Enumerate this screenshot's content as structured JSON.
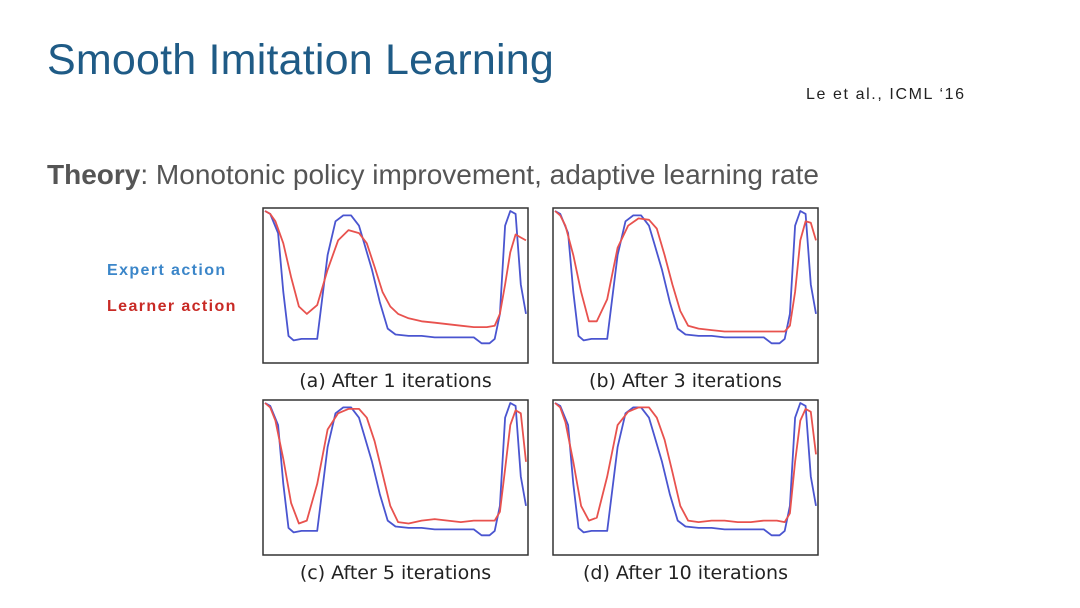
{
  "slide": {
    "title": "Smooth Imitation Learning",
    "citation": "Le et al., ICML ‘16",
    "theory_label": "Theory",
    "theory_text": ": Monotonic policy improvement, adaptive learning rate"
  },
  "legend": {
    "expert": "Expert action",
    "learner": "Learner action"
  },
  "colors": {
    "title": "#1f5b86",
    "expert": "#4a55d0",
    "learner": "#e8524e",
    "expert_legend": "#3b86c9",
    "learner_legend": "#c82a25"
  },
  "chart_data": [
    {
      "type": "line",
      "caption": "(a) After 1 iterations",
      "series": [
        {
          "name": "Expert action",
          "x": [
            0,
            0.02,
            0.05,
            0.07,
            0.09,
            0.11,
            0.14,
            0.2,
            0.24,
            0.27,
            0.3,
            0.33,
            0.36,
            0.38,
            0.41,
            0.44,
            0.47,
            0.5,
            0.55,
            0.6,
            0.65,
            0.7,
            0.75,
            0.8,
            0.83,
            0.86,
            0.88,
            0.9,
            0.92,
            0.94,
            0.96,
            0.98,
            1
          ],
          "y": [
            1,
            0.98,
            0.85,
            0.45,
            0.15,
            0.12,
            0.13,
            0.13,
            0.7,
            0.93,
            0.97,
            0.97,
            0.9,
            0.78,
            0.6,
            0.38,
            0.2,
            0.16,
            0.15,
            0.15,
            0.14,
            0.14,
            0.14,
            0.14,
            0.1,
            0.1,
            0.13,
            0.3,
            0.9,
            1,
            0.98,
            0.5,
            0.3
          ]
        },
        {
          "name": "Learner action",
          "x": [
            0,
            0.02,
            0.04,
            0.07,
            0.1,
            0.13,
            0.16,
            0.2,
            0.24,
            0.28,
            0.32,
            0.36,
            0.39,
            0.42,
            0.45,
            0.48,
            0.51,
            0.55,
            0.6,
            0.65,
            0.7,
            0.75,
            0.8,
            0.85,
            0.88,
            0.9,
            0.92,
            0.94,
            0.96,
            0.98,
            1
          ],
          "y": [
            1,
            0.98,
            0.93,
            0.78,
            0.55,
            0.35,
            0.3,
            0.36,
            0.6,
            0.8,
            0.87,
            0.85,
            0.78,
            0.62,
            0.45,
            0.35,
            0.3,
            0.27,
            0.25,
            0.24,
            0.23,
            0.22,
            0.21,
            0.21,
            0.22,
            0.3,
            0.5,
            0.72,
            0.84,
            0.82,
            0.8
          ]
        }
      ]
    },
    {
      "type": "line",
      "caption": "(b) After 3 iterations",
      "series": [
        {
          "name": "Expert action",
          "x": [
            0,
            0.02,
            0.05,
            0.07,
            0.09,
            0.11,
            0.14,
            0.2,
            0.24,
            0.27,
            0.3,
            0.33,
            0.36,
            0.38,
            0.41,
            0.44,
            0.47,
            0.5,
            0.55,
            0.6,
            0.65,
            0.7,
            0.75,
            0.8,
            0.83,
            0.86,
            0.88,
            0.9,
            0.92,
            0.94,
            0.96,
            0.98,
            1
          ],
          "y": [
            1,
            0.98,
            0.85,
            0.45,
            0.15,
            0.12,
            0.13,
            0.13,
            0.7,
            0.93,
            0.97,
            0.97,
            0.9,
            0.78,
            0.6,
            0.38,
            0.2,
            0.16,
            0.15,
            0.15,
            0.14,
            0.14,
            0.14,
            0.14,
            0.1,
            0.1,
            0.13,
            0.3,
            0.9,
            1,
            0.98,
            0.5,
            0.3
          ]
        },
        {
          "name": "Learner action",
          "x": [
            0,
            0.02,
            0.04,
            0.07,
            0.1,
            0.13,
            0.16,
            0.2,
            0.24,
            0.28,
            0.32,
            0.36,
            0.39,
            0.42,
            0.45,
            0.48,
            0.51,
            0.55,
            0.6,
            0.65,
            0.7,
            0.75,
            0.8,
            0.85,
            0.88,
            0.9,
            0.92,
            0.94,
            0.96,
            0.98,
            1
          ],
          "y": [
            1,
            0.97,
            0.9,
            0.7,
            0.45,
            0.25,
            0.25,
            0.4,
            0.75,
            0.9,
            0.95,
            0.94,
            0.88,
            0.7,
            0.5,
            0.32,
            0.22,
            0.2,
            0.19,
            0.18,
            0.18,
            0.18,
            0.18,
            0.18,
            0.18,
            0.22,
            0.45,
            0.8,
            0.93,
            0.92,
            0.8
          ]
        }
      ]
    },
    {
      "type": "line",
      "caption": "(c) After 5 iterations",
      "series": [
        {
          "name": "Expert action",
          "x": [
            0,
            0.02,
            0.05,
            0.07,
            0.09,
            0.11,
            0.14,
            0.2,
            0.24,
            0.27,
            0.3,
            0.33,
            0.36,
            0.38,
            0.41,
            0.44,
            0.47,
            0.5,
            0.55,
            0.6,
            0.65,
            0.7,
            0.75,
            0.8,
            0.83,
            0.86,
            0.88,
            0.9,
            0.92,
            0.94,
            0.96,
            0.98,
            1
          ],
          "y": [
            1,
            0.98,
            0.85,
            0.45,
            0.15,
            0.12,
            0.13,
            0.13,
            0.7,
            0.93,
            0.97,
            0.97,
            0.9,
            0.78,
            0.6,
            0.38,
            0.2,
            0.16,
            0.15,
            0.15,
            0.14,
            0.14,
            0.14,
            0.14,
            0.1,
            0.1,
            0.13,
            0.3,
            0.9,
            1,
            0.98,
            0.5,
            0.3
          ]
        },
        {
          "name": "Learner action",
          "x": [
            0,
            0.02,
            0.04,
            0.07,
            0.1,
            0.13,
            0.16,
            0.2,
            0.24,
            0.28,
            0.32,
            0.36,
            0.39,
            0.42,
            0.45,
            0.48,
            0.51,
            0.55,
            0.6,
            0.65,
            0.7,
            0.75,
            0.8,
            0.85,
            0.88,
            0.9,
            0.92,
            0.94,
            0.96,
            0.98,
            1
          ],
          "y": [
            1,
            0.97,
            0.88,
            0.62,
            0.32,
            0.18,
            0.2,
            0.45,
            0.82,
            0.93,
            0.96,
            0.96,
            0.9,
            0.74,
            0.52,
            0.3,
            0.19,
            0.18,
            0.2,
            0.21,
            0.2,
            0.19,
            0.2,
            0.2,
            0.2,
            0.26,
            0.55,
            0.85,
            0.95,
            0.93,
            0.6
          ]
        }
      ]
    },
    {
      "type": "line",
      "caption": "(d) After 10 iterations",
      "series": [
        {
          "name": "Expert action",
          "x": [
            0,
            0.02,
            0.05,
            0.07,
            0.09,
            0.11,
            0.14,
            0.2,
            0.24,
            0.27,
            0.3,
            0.33,
            0.36,
            0.38,
            0.41,
            0.44,
            0.47,
            0.5,
            0.55,
            0.6,
            0.65,
            0.7,
            0.75,
            0.8,
            0.83,
            0.86,
            0.88,
            0.9,
            0.92,
            0.94,
            0.96,
            0.98,
            1
          ],
          "y": [
            1,
            0.98,
            0.85,
            0.45,
            0.15,
            0.12,
            0.13,
            0.13,
            0.7,
            0.93,
            0.97,
            0.97,
            0.9,
            0.78,
            0.6,
            0.38,
            0.2,
            0.16,
            0.15,
            0.15,
            0.14,
            0.14,
            0.14,
            0.14,
            0.1,
            0.1,
            0.13,
            0.3,
            0.9,
            1,
            0.98,
            0.5,
            0.3
          ]
        },
        {
          "name": "Learner action",
          "x": [
            0,
            0.02,
            0.04,
            0.07,
            0.1,
            0.13,
            0.16,
            0.2,
            0.24,
            0.28,
            0.32,
            0.36,
            0.39,
            0.42,
            0.45,
            0.48,
            0.51,
            0.55,
            0.6,
            0.65,
            0.7,
            0.75,
            0.8,
            0.85,
            0.88,
            0.9,
            0.92,
            0.94,
            0.96,
            0.98,
            1
          ],
          "y": [
            1,
            0.97,
            0.87,
            0.6,
            0.3,
            0.2,
            0.22,
            0.5,
            0.85,
            0.94,
            0.97,
            0.97,
            0.9,
            0.75,
            0.53,
            0.3,
            0.2,
            0.19,
            0.2,
            0.2,
            0.19,
            0.19,
            0.2,
            0.2,
            0.19,
            0.25,
            0.6,
            0.88,
            0.96,
            0.94,
            0.65
          ]
        }
      ]
    }
  ]
}
